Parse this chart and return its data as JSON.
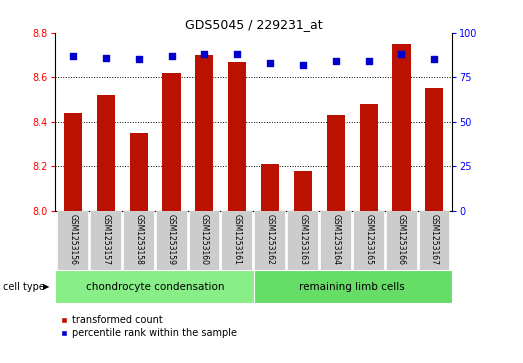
{
  "title": "GDS5045 / 229231_at",
  "samples": [
    "GSM1253156",
    "GSM1253157",
    "GSM1253158",
    "GSM1253159",
    "GSM1253160",
    "GSM1253161",
    "GSM1253162",
    "GSM1253163",
    "GSM1253164",
    "GSM1253165",
    "GSM1253166",
    "GSM1253167"
  ],
  "transformed_count": [
    8.44,
    8.52,
    8.35,
    8.62,
    8.7,
    8.67,
    8.21,
    8.18,
    8.43,
    8.48,
    8.75,
    8.55
  ],
  "percentile_rank": [
    87,
    86,
    85,
    87,
    88,
    88,
    83,
    82,
    84,
    84,
    88,
    85
  ],
  "ylim_left": [
    8.0,
    8.8
  ],
  "ylim_right": [
    0,
    100
  ],
  "yticks_left": [
    8.0,
    8.2,
    8.4,
    8.6,
    8.8
  ],
  "yticks_right": [
    0,
    25,
    50,
    75,
    100
  ],
  "bar_color": "#bb1100",
  "dot_color": "#0000cc",
  "bg_color": "#ffffff",
  "grid_color": "#000000",
  "group1_label": "chondrocyte condensation",
  "group2_label": "remaining limb cells",
  "group1_color": "#88ee88",
  "group2_color": "#66dd66",
  "cell_type_label": "cell type",
  "legend_bar_label": "transformed count",
  "legend_dot_label": "percentile rank within the sample",
  "n_group1": 6,
  "n_group2": 6,
  "tick_bg": "#cccccc",
  "bar_width": 0.55
}
